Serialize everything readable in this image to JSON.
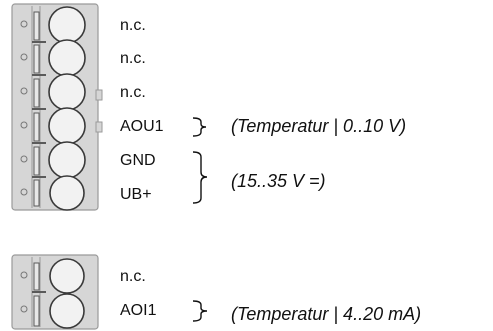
{
  "colors": {
    "housing": "#d6d6d6",
    "housing_edge": "#9a9a9a",
    "circle_fill": "#f2f2f2",
    "circle_edge": "#3a3a3a",
    "slot": "#5a5a5a",
    "text": "#111111"
  },
  "block1": {
    "pins": [
      {
        "label": "n.c."
      },
      {
        "label": "n.c."
      },
      {
        "label": "n.c."
      },
      {
        "label": "AOU1"
      },
      {
        "label": "GND"
      },
      {
        "label": "UB+"
      }
    ],
    "groups": [
      {
        "text": "(Temperatur | 0..10 V)",
        "pins": [
          3
        ]
      },
      {
        "text": "(15..35 V =)",
        "pins": [
          4,
          5
        ]
      }
    ]
  },
  "block2": {
    "pins": [
      {
        "label": "n.c."
      },
      {
        "label": "AOI1"
      }
    ],
    "groups": [
      {
        "text": "(Temperatur | 4..20 mA)",
        "pins": [
          1
        ]
      }
    ]
  }
}
